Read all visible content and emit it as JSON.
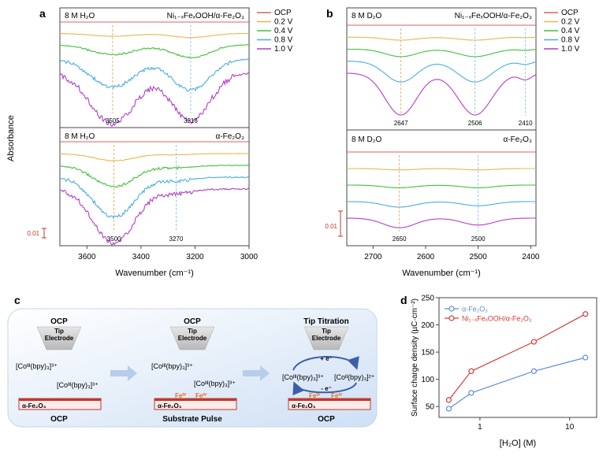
{
  "panels": {
    "a": {
      "letter": "a"
    },
    "b": {
      "letter": "b"
    },
    "c": {
      "letter": "c"
    },
    "d": {
      "letter": "d"
    }
  },
  "legend_ab": {
    "items": [
      {
        "label": "OCP",
        "color": "#e06060"
      },
      {
        "label": "0.2 V",
        "color": "#e8b84a"
      },
      {
        "label": "0.4 V",
        "color": "#3fc13a"
      },
      {
        "label": "0.8 V",
        "color": "#49aee0"
      },
      {
        "label": "1.0 V",
        "color": "#b43ec8"
      }
    ]
  },
  "chart_data": [
    {
      "id": "a-top",
      "type": "line",
      "title_left": "8 M H₂O",
      "title_right": "Ni₁₋ₓFeₓOOH/α-Fe₂O₃",
      "xlabel": "Wavenumber (cm⁻¹)",
      "ylabel": "Absorbance",
      "xlim": [
        3700,
        3000
      ],
      "xticks": [
        3600,
        3400,
        3200,
        3000
      ],
      "peaks": [
        {
          "x": 3505,
          "label": "3505"
        },
        {
          "x": 3216,
          "label": "3216"
        }
      ],
      "series": [
        {
          "name": "OCP",
          "offset": 0.0,
          "amp1": 0.0,
          "amp2": 0.0,
          "noise": 0.0
        },
        {
          "name": "0.2 V",
          "offset": 0.08,
          "amp1": 0.02,
          "amp2": 0.03,
          "noise": 0.003
        },
        {
          "name": "0.4 V",
          "offset": 0.16,
          "amp1": 0.07,
          "amp2": 0.09,
          "noise": 0.006
        },
        {
          "name": "0.8 V",
          "offset": 0.26,
          "amp1": 0.2,
          "amp2": 0.22,
          "noise": 0.012
        },
        {
          "name": "1.0 V",
          "offset": 0.36,
          "amp1": 0.36,
          "amp2": 0.34,
          "noise": 0.02
        }
      ]
    },
    {
      "id": "a-bottom",
      "type": "line",
      "title_left": "8 M H₂O",
      "title_right": "α-Fe₂O₃",
      "xlim": [
        3700,
        3000
      ],
      "peaks": [
        {
          "x": 3500,
          "label": "3500"
        },
        {
          "x": 3270,
          "label": "3270"
        }
      ],
      "scale_label": "0.01",
      "series": [
        {
          "name": "OCP",
          "offset": 0.0,
          "amp1": 0.0,
          "amp2": 0.0,
          "noise": 0.0
        },
        {
          "name": "0.2 V",
          "offset": 0.1,
          "amp1": 0.06,
          "amp2": 0.01,
          "noise": 0.004
        },
        {
          "name": "0.4 V",
          "offset": 0.2,
          "amp1": 0.18,
          "amp2": 0.02,
          "noise": 0.01
        },
        {
          "name": "0.8 V",
          "offset": 0.3,
          "amp1": 0.34,
          "amp2": 0.03,
          "noise": 0.015
        },
        {
          "name": "1.0 V",
          "offset": 0.4,
          "amp1": 0.46,
          "amp2": 0.04,
          "noise": 0.02
        }
      ]
    },
    {
      "id": "b-top",
      "type": "line",
      "title_left": "8 M D₂O",
      "title_right": "Ni₁₋ₓFeₓOOH/α-Fe₂O₃",
      "xlabel": "Wavenumber (cm⁻¹)",
      "xlim": [
        2750,
        2390
      ],
      "xticks": [
        2700,
        2600,
        2500,
        2400
      ],
      "peaks": [
        {
          "x": 2647,
          "label": "2647"
        },
        {
          "x": 2506,
          "label": "2506"
        },
        {
          "x": 2410,
          "label": "2410"
        }
      ],
      "series": [
        {
          "name": "OCP",
          "offset": 0.0,
          "amp1": 0.0,
          "amp2": 0.0,
          "noise": 0.0
        },
        {
          "name": "0.2 V",
          "offset": 0.08,
          "amp1": 0.02,
          "amp2": 0.02,
          "noise": 0.0
        },
        {
          "name": "0.4 V",
          "offset": 0.16,
          "amp1": 0.05,
          "amp2": 0.05,
          "noise": 0.0
        },
        {
          "name": "0.8 V",
          "offset": 0.24,
          "amp1": 0.14,
          "amp2": 0.14,
          "noise": 0.0
        },
        {
          "name": "1.0 V",
          "offset": 0.32,
          "amp1": 0.28,
          "amp2": 0.28,
          "noise": 0.0
        }
      ]
    },
    {
      "id": "b-bottom",
      "type": "line",
      "title_left": "8 M D₂O",
      "title_right": "α-Fe₂O₃",
      "xlim": [
        2750,
        2390
      ],
      "peaks": [
        {
          "x": 2650,
          "label": "2650"
        },
        {
          "x": 2500,
          "label": "2500"
        }
      ],
      "scale_label": "0.01",
      "series": [
        {
          "name": "OCP",
          "offset": 0.0,
          "amp1": 0.0,
          "amp2": 0.0,
          "noise": 0.0
        },
        {
          "name": "0.2 V",
          "offset": 0.12,
          "amp1": 0.01,
          "amp2": 0.01,
          "noise": 0.0
        },
        {
          "name": "0.4 V",
          "offset": 0.24,
          "amp1": 0.02,
          "amp2": 0.02,
          "noise": 0.0
        },
        {
          "name": "0.8 V",
          "offset": 0.36,
          "amp1": 0.04,
          "amp2": 0.03,
          "noise": 0.0
        },
        {
          "name": "1.0 V",
          "offset": 0.48,
          "amp1": 0.07,
          "amp2": 0.05,
          "noise": 0.0
        }
      ]
    },
    {
      "id": "d",
      "type": "line",
      "xscale": "log",
      "xlabel": "[H₂O] (M)",
      "ylabel": "Surface charge density (µC·cm⁻²)",
      "xlim": [
        0.35,
        20
      ],
      "ylim": [
        30,
        250
      ],
      "xticks": [
        {
          "v": 1,
          "label": "1"
        },
        {
          "v": 10,
          "label": "10"
        }
      ],
      "yticks": [
        50,
        100,
        150,
        200,
        250
      ],
      "series": [
        {
          "name": "α-Fe₂O₃",
          "color": "#5b8fd6",
          "x": [
            0.45,
            0.8,
            4,
            15
          ],
          "y": [
            46,
            75,
            115,
            140
          ]
        },
        {
          "name": "Ni₁₋ₓFeₓOOH/α-Fe₂O₃",
          "color": "#d63a3a",
          "x": [
            0.45,
            0.8,
            4,
            15
          ],
          "y": [
            62,
            115,
            169,
            220
          ]
        }
      ]
    }
  ],
  "diagram": {
    "stages": [
      {
        "top": "OCP",
        "tip": "Tip\nElectrode",
        "bottom": "OCP"
      },
      {
        "top": "OCP",
        "tip": "Tip\nElectrode",
        "bottom": "Substrate Pulse"
      },
      {
        "top": "Tip Titration",
        "tip": "Tip\nElectrode",
        "bottom": "OCP"
      }
    ],
    "substrate_label": "α-Fe₂O₃",
    "complex_iii": "[Coᴵᴵᴵ(bpy)₃]³⁺",
    "complex_ii": "[Coᴵᴵ(bpy)₃]²⁺",
    "fe_iv": "Feᴵⱽ",
    "electron_plus": "+ e⁻",
    "electron_minus": "- e⁻"
  }
}
